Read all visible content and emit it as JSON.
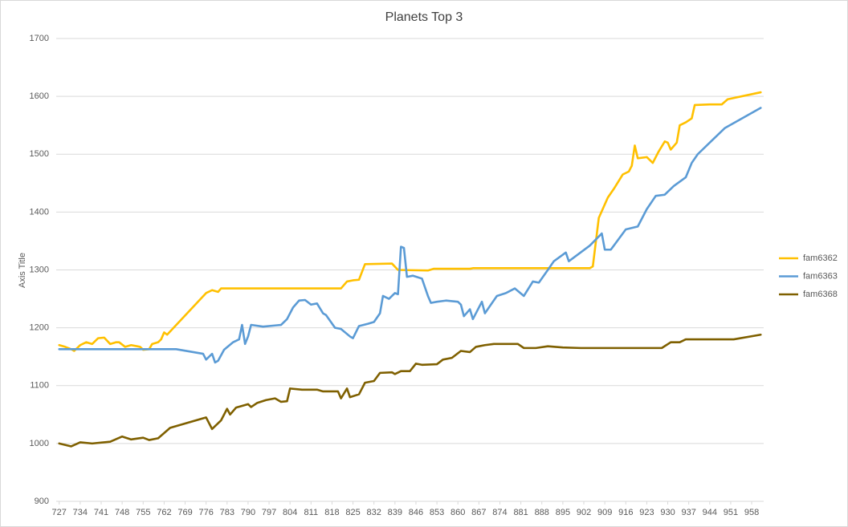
{
  "chart_data": {
    "type": "line",
    "title": "Planets Top 3",
    "y_label": "Axis Title",
    "xlim": [
      726,
      962
    ],
    "xticks": [
      727,
      734,
      741,
      748,
      755,
      762,
      769,
      776,
      783,
      790,
      797,
      804,
      811,
      818,
      825,
      832,
      839,
      846,
      853,
      860,
      867,
      874,
      881,
      888,
      895,
      902,
      909,
      916,
      923,
      930,
      937,
      944,
      951,
      958
    ],
    "ylim": [
      900,
      1700
    ],
    "yticks": [
      900,
      1000,
      1100,
      1200,
      1300,
      1400,
      1500,
      1600,
      1700
    ],
    "grid": true,
    "legend": "right",
    "series": [
      {
        "name": "fam6362",
        "color": "#ffc000",
        "x": [
          727,
          729,
          731,
          732,
          734,
          736,
          738,
          740,
          742,
          744,
          746,
          747,
          749,
          751,
          753,
          754,
          755,
          757,
          758,
          760,
          761,
          762,
          763,
          776,
          778,
          780,
          781,
          821,
          823,
          825,
          827,
          829,
          838,
          840,
          850,
          852,
          864,
          865,
          904,
          905,
          907,
          910,
          912,
          915,
          917,
          918,
          919,
          920,
          923,
          925,
          927,
          929,
          930,
          931,
          933,
          934,
          936,
          938,
          939,
          944,
          948,
          950,
          961
        ],
        "values": [
          1170,
          1167,
          1163,
          1160,
          1170,
          1175,
          1172,
          1182,
          1183,
          1172,
          1175,
          1175,
          1167,
          1170,
          1168,
          1167,
          1162,
          1163,
          1172,
          1175,
          1180,
          1192,
          1188,
          1260,
          1265,
          1262,
          1268,
          1268,
          1280,
          1282,
          1283,
          1310,
          1311,
          1300,
          1299,
          1302,
          1302,
          1303,
          1303,
          1306,
          1390,
          1425,
          1440,
          1465,
          1470,
          1480,
          1515,
          1493,
          1495,
          1485,
          1505,
          1522,
          1520,
          1508,
          1520,
          1550,
          1555,
          1562,
          1585,
          1586,
          1586,
          1595,
          1607
        ]
      },
      {
        "name": "fam6363",
        "color": "#5b9bd5",
        "x": [
          727,
          766,
          775,
          776,
          778,
          779,
          780,
          782,
          785,
          787,
          788,
          789,
          790,
          791,
          795,
          799,
          801,
          803,
          805,
          807,
          809,
          811,
          813,
          815,
          816,
          819,
          821,
          824,
          825,
          827,
          830,
          832,
          834,
          835,
          837,
          839,
          840,
          841,
          842,
          843,
          845,
          848,
          850,
          851,
          853,
          856,
          860,
          861,
          862,
          864,
          865,
          868,
          869,
          873,
          876,
          879,
          882,
          885,
          887,
          890,
          892,
          896,
          897,
          904,
          908,
          909,
          911,
          916,
          920,
          923,
          926,
          929,
          932,
          936,
          938,
          940,
          944,
          949,
          961
        ],
        "values": [
          1163,
          1163,
          1155,
          1145,
          1155,
          1140,
          1143,
          1162,
          1175,
          1180,
          1205,
          1172,
          1185,
          1205,
          1202,
          1204,
          1205,
          1215,
          1235,
          1247,
          1248,
          1240,
          1242,
          1225,
          1222,
          1200,
          1198,
          1185,
          1182,
          1203,
          1207,
          1210,
          1225,
          1255,
          1250,
          1260,
          1258,
          1340,
          1338,
          1288,
          1290,
          1285,
          1255,
          1243,
          1245,
          1247,
          1245,
          1240,
          1220,
          1232,
          1215,
          1245,
          1225,
          1255,
          1260,
          1268,
          1255,
          1280,
          1278,
          1300,
          1315,
          1330,
          1315,
          1342,
          1363,
          1335,
          1335,
          1370,
          1375,
          1405,
          1428,
          1430,
          1445,
          1460,
          1485,
          1500,
          1520,
          1545,
          1580
        ]
      },
      {
        "name": "fam6368",
        "color": "#7f6000",
        "x": [
          727,
          731,
          734,
          738,
          744,
          748,
          751,
          755,
          757,
          760,
          764,
          776,
          778,
          781,
          783,
          784,
          786,
          790,
          791,
          793,
          796,
          799,
          801,
          803,
          804,
          808,
          813,
          815,
          820,
          821,
          823,
          824,
          827,
          829,
          832,
          834,
          838,
          839,
          841,
          844,
          846,
          848,
          853,
          855,
          858,
          861,
          864,
          866,
          869,
          872,
          880,
          882,
          886,
          890,
          895,
          901,
          928,
          931,
          934,
          936,
          952,
          961
        ],
        "values": [
          1000,
          995,
          1002,
          1000,
          1003,
          1012,
          1007,
          1010,
          1006,
          1009,
          1027,
          1045,
          1025,
          1040,
          1060,
          1050,
          1062,
          1068,
          1063,
          1070,
          1075,
          1078,
          1072,
          1073,
          1095,
          1093,
          1093,
          1090,
          1090,
          1078,
          1095,
          1080,
          1085,
          1105,
          1108,
          1122,
          1123,
          1120,
          1125,
          1125,
          1138,
          1136,
          1137,
          1145,
          1148,
          1160,
          1158,
          1167,
          1170,
          1172,
          1172,
          1165,
          1165,
          1168,
          1166,
          1165,
          1165,
          1175,
          1175,
          1180,
          1180,
          1188
        ]
      }
    ]
  }
}
